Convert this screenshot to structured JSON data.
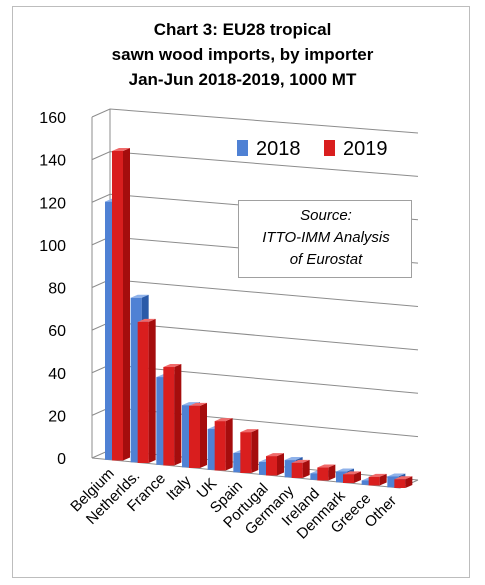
{
  "title_lines": [
    "Chart 3: EU28 tropical",
    "sawn wood imports, by importer",
    "Jan-Jun 2018-2019, 1000 MT"
  ],
  "source_lines": [
    "Source:",
    "ITTO-IMM Analysis",
    "of Eurostat"
  ],
  "colors": {
    "s2018_front": "#4f81d4",
    "s2018_side": "#2a5aa8",
    "s2018_top": "#8fb2ea",
    "s2019_front": "#d91e1e",
    "s2019_side": "#a50d0d",
    "s2019_top": "#f06a6a",
    "grid": "#8c8c8c"
  },
  "chart_data": {
    "type": "bar",
    "title": "Chart 3: EU28 tropical sawn wood imports, by importer Jan-Jun 2018-2019, 1000 MT",
    "categories": [
      "Belgium",
      "Netherlds.",
      "France",
      "Italy",
      "UK",
      "Spain",
      "Portugal",
      "Germany",
      "Ireland",
      "Denmark",
      "Greece",
      "Other"
    ],
    "series": [
      {
        "name": "2018",
        "values": [
          121,
          77,
          41,
          29,
          19,
          9,
          6,
          8,
          3,
          5,
          2,
          5
        ]
      },
      {
        "name": "2019",
        "values": [
          145,
          66,
          46,
          29,
          23,
          19,
          9,
          7,
          6,
          4,
          4,
          4
        ]
      }
    ],
    "y_ticks": [
      "160",
      "140",
      "120",
      "100",
      "80",
      "60",
      "40",
      "20",
      "0"
    ],
    "ylim": [
      0,
      160
    ],
    "grid": true,
    "legend_position": "top-right"
  }
}
